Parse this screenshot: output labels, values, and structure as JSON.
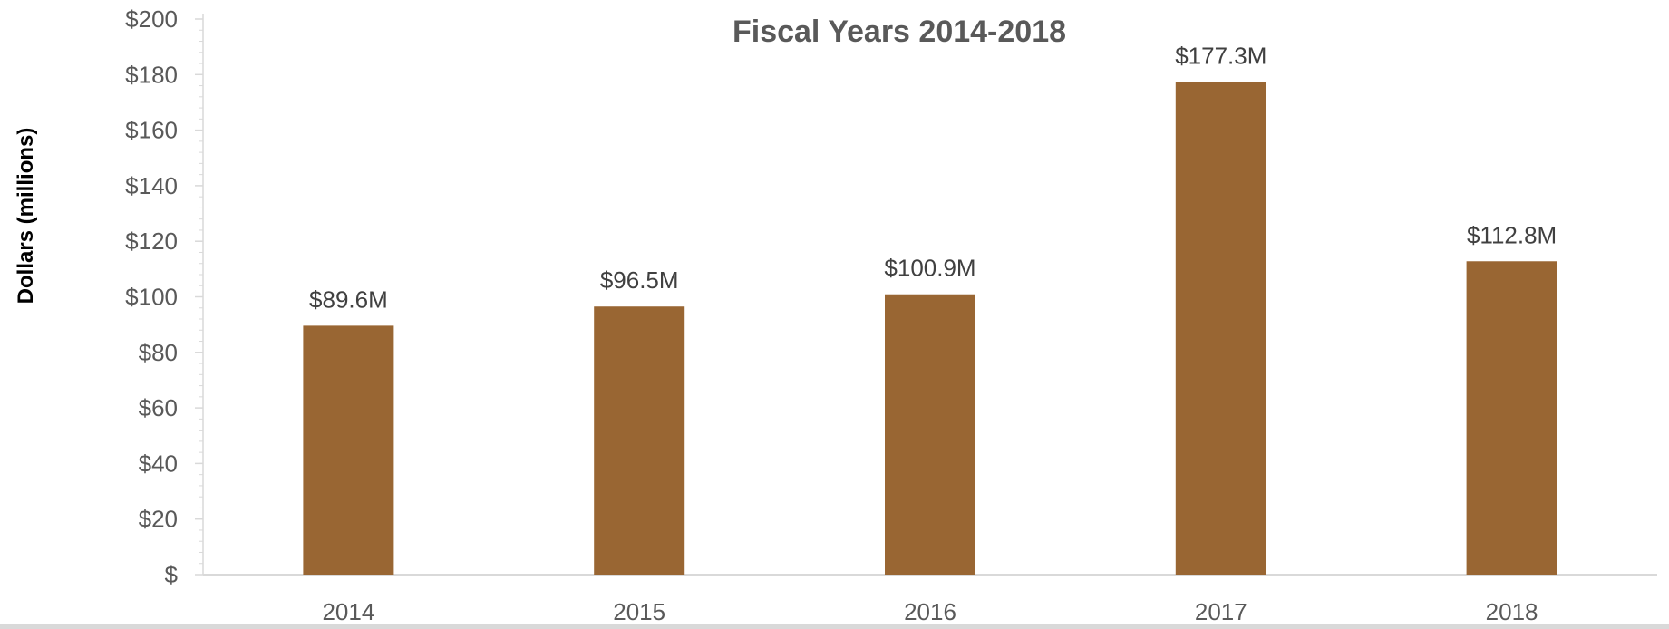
{
  "chart_data": {
    "type": "bar",
    "title": "Fiscal Years 2014-2018",
    "xlabel": "",
    "ylabel": "Dollars (millions)",
    "categories": [
      "2014",
      "2015",
      "2016",
      "2017",
      "2018"
    ],
    "values": [
      89.6,
      96.5,
      100.9,
      177.3,
      112.8
    ],
    "data_labels": [
      "$89.6M",
      "$96.5M",
      "$100.9M",
      "$177.3M",
      "$112.8M"
    ],
    "ylim": [
      0,
      200
    ],
    "yticks": [
      0,
      20,
      40,
      60,
      80,
      100,
      120,
      140,
      160,
      180,
      200
    ],
    "ytick_labels": [
      "$",
      "$20",
      "$40",
      "$60",
      "$80",
      "$100",
      "$120",
      "$140",
      "$160",
      "$180",
      "$200"
    ],
    "grid": false,
    "legend": "none",
    "colors": {
      "bar": "#996633",
      "axis": "#d9d9d9",
      "tick_text": "#595959",
      "title_text": "#595959"
    }
  }
}
